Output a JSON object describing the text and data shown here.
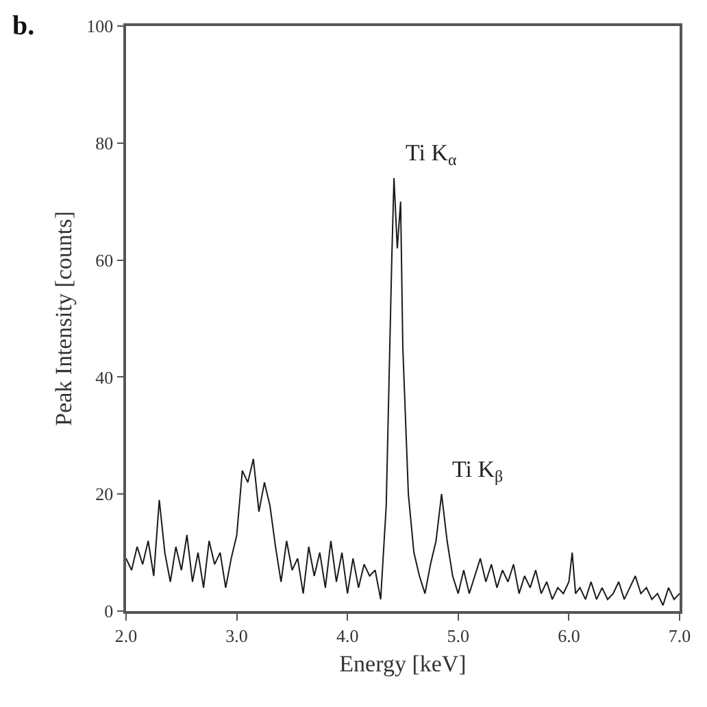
{
  "chart_data": {
    "type": "line",
    "xlabel": "Energy [keV]",
    "ylabel": "Peak Intensity [counts]",
    "x": [
      2.0,
      2.05,
      2.1,
      2.15,
      2.2,
      2.25,
      2.3,
      2.35,
      2.4,
      2.45,
      2.5,
      2.55,
      2.6,
      2.65,
      2.7,
      2.75,
      2.8,
      2.85,
      2.9,
      2.95,
      3.0,
      3.05,
      3.1,
      3.15,
      3.2,
      3.25,
      3.3,
      3.35,
      3.4,
      3.45,
      3.5,
      3.55,
      3.6,
      3.65,
      3.7,
      3.75,
      3.8,
      3.85,
      3.9,
      3.95,
      4.0,
      4.05,
      4.1,
      4.15,
      4.2,
      4.25,
      4.3,
      4.35,
      4.4,
      4.42,
      4.45,
      4.48,
      4.5,
      4.55,
      4.6,
      4.65,
      4.7,
      4.75,
      4.8,
      4.85,
      4.9,
      4.95,
      5.0,
      5.05,
      5.1,
      5.15,
      5.2,
      5.25,
      5.3,
      5.35,
      5.4,
      5.45,
      5.5,
      5.55,
      5.6,
      5.65,
      5.7,
      5.75,
      5.8,
      5.85,
      5.9,
      5.95,
      6.0,
      6.03,
      6.06,
      6.1,
      6.15,
      6.2,
      6.25,
      6.3,
      6.35,
      6.4,
      6.45,
      6.5,
      6.55,
      6.6,
      6.65,
      6.7,
      6.75,
      6.8,
      6.85,
      6.9,
      6.95,
      7.0
    ],
    "series": [
      {
        "color": "#1a1a1a",
        "values": [
          9,
          7,
          11,
          8,
          12,
          6,
          19,
          10,
          5,
          11,
          7,
          13,
          5,
          10,
          4,
          12,
          8,
          10,
          4,
          9,
          13,
          24,
          22,
          26,
          17,
          22,
          18,
          11,
          5,
          12,
          7,
          9,
          3,
          11,
          6,
          10,
          4,
          12,
          5,
          10,
          3,
          9,
          4,
          8,
          6,
          7,
          2,
          18,
          60,
          74,
          62,
          70,
          45,
          20,
          10,
          6,
          3,
          8,
          12,
          20,
          12,
          6,
          3,
          7,
          3,
          6,
          9,
          5,
          8,
          4,
          7,
          5,
          8,
          3,
          6,
          4,
          7,
          3,
          5,
          2,
          4,
          3,
          5,
          10,
          3,
          4,
          2,
          5,
          2,
          4,
          2,
          3,
          5,
          2,
          4,
          6,
          3,
          4,
          2,
          3,
          1,
          4,
          2,
          3
        ]
      }
    ],
    "xlim": [
      2.0,
      7.0
    ],
    "ylim": [
      0,
      100
    ],
    "xticks": [
      {
        "value": 2,
        "label": "2.0"
      },
      {
        "value": 3,
        "label": "3.0"
      },
      {
        "value": 4,
        "label": "4.0"
      },
      {
        "value": 5,
        "label": "5.0"
      },
      {
        "value": 6,
        "label": "6.0"
      },
      {
        "value": 7,
        "label": "7.0"
      }
    ],
    "yticks": [
      0,
      20,
      40,
      60,
      80,
      100
    ],
    "annotations": [
      {
        "text": "Ti K$_{α}$",
        "x": 4.42,
        "y": 74
      },
      {
        "text": "Ti K$_{β}$",
        "x": 4.85,
        "y": 20
      },
      "b."
    ],
    "grid": false,
    "marker": "none",
    "line_style": "solid"
  }
}
